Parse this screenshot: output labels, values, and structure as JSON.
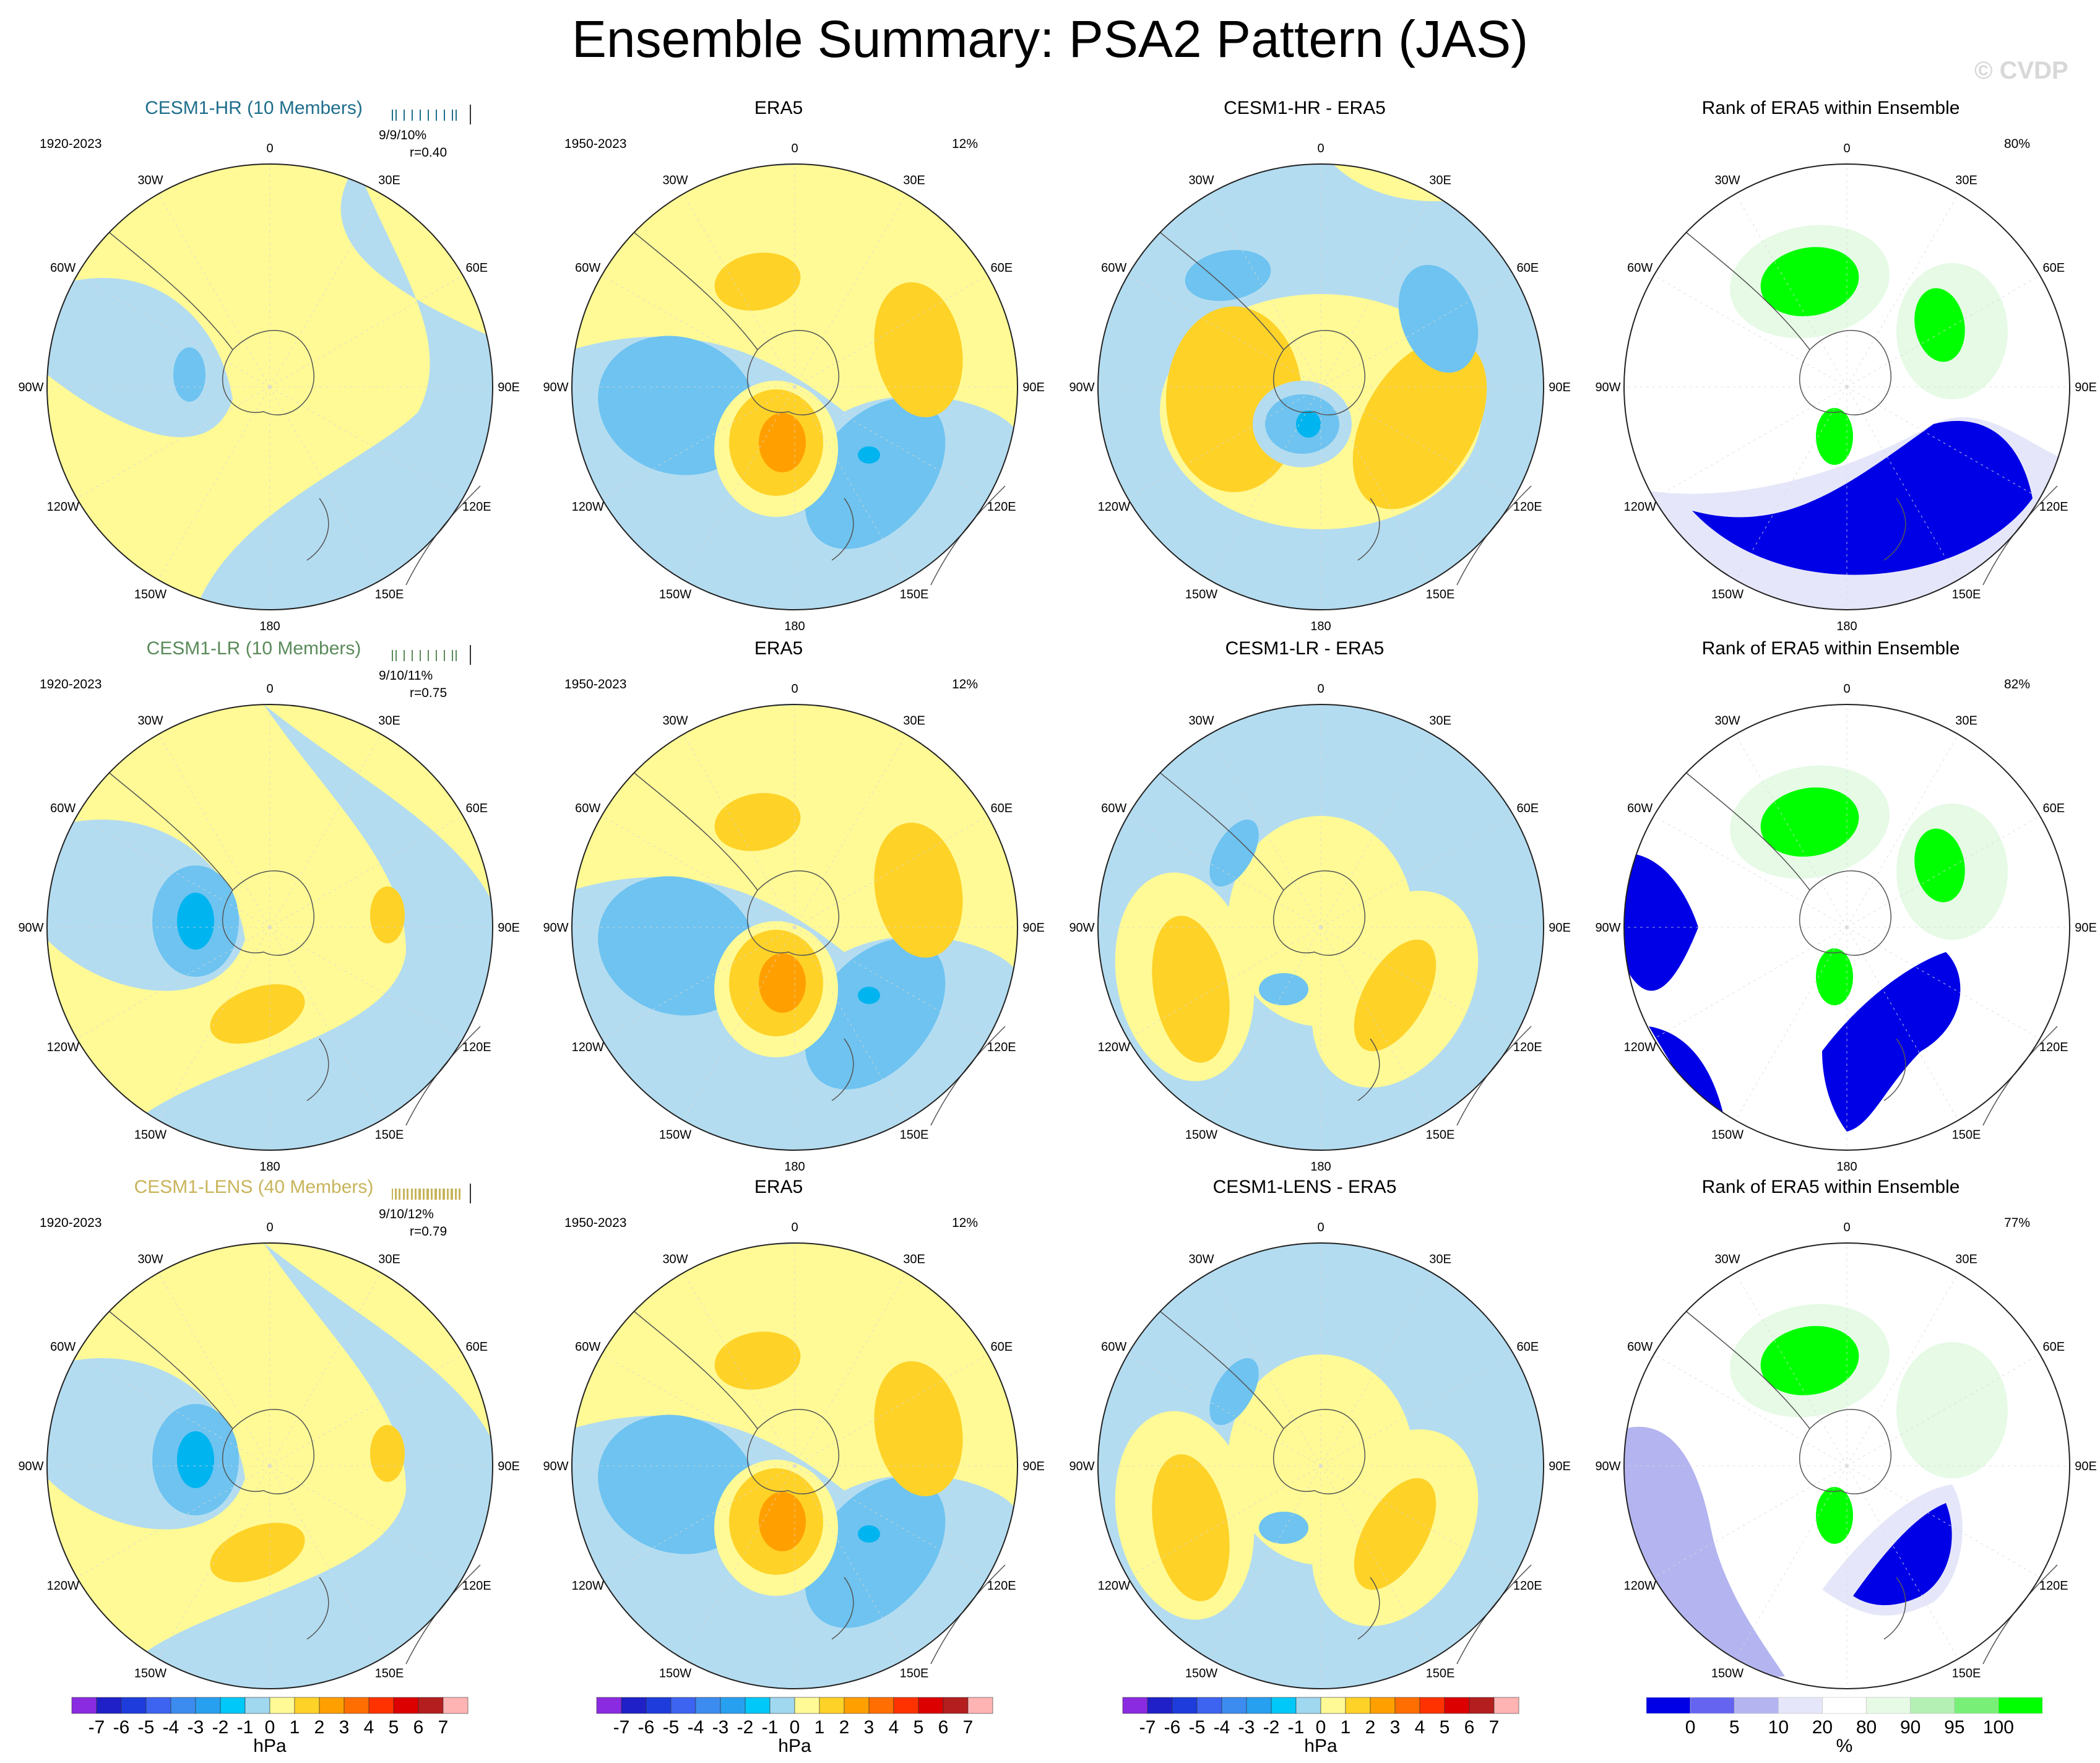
{
  "title": "Ensemble Summary: PSA2 Pattern (JAS)",
  "watermark": "© CVDP",
  "lon_labels": [
    "0",
    "30E",
    "60E",
    "90E",
    "120E",
    "150E",
    "180",
    "150W",
    "120W",
    "90W",
    "60W",
    "30W"
  ],
  "rows": [
    {
      "model_title": "CESM1-HR (10 Members)",
      "model_color": "#1f6e8c",
      "years": "1920-2023",
      "stats": "9/9/10%",
      "r": "r=0.40",
      "era5_title": "ERA5",
      "era5_years": "1950-2023",
      "era5_pct": "12%",
      "diff_title": "CESM1-HR - ERA5",
      "rank_title": "Rank of ERA5 within Ensemble",
      "rank_pct": "80%"
    },
    {
      "model_title": "CESM1-LR (10 Members)",
      "model_color": "#5a8a5a",
      "years": "1920-2023",
      "stats": "9/10/11%",
      "r": "r=0.75",
      "era5_title": "ERA5",
      "era5_years": "1950-2023",
      "era5_pct": "12%",
      "diff_title": "CESM1-LR - ERA5",
      "rank_title": "Rank of ERA5 within Ensemble",
      "rank_pct": "82%"
    },
    {
      "model_title": "CESM1-LENS (40 Members)",
      "model_color": "#c8b45a",
      "years": "1920-2023",
      "stats": "9/10/12%",
      "r": "r=0.79",
      "era5_title": "ERA5",
      "era5_years": "1950-2023",
      "era5_pct": "12%",
      "diff_title": "CESM1-LENS - ERA5",
      "rank_title": "Rank of ERA5 within Ensemble",
      "rank_pct": "77%"
    }
  ],
  "chart_data": [
    {
      "type": "polar-contour-map",
      "title": "Ensemble Summary: PSA2 Pattern (JAS)",
      "colorbar": {
        "unit": "hPa",
        "levels": [
          "-7",
          "-6",
          "-5",
          "-4",
          "-3",
          "-2",
          "-1",
          "0",
          "1",
          "2",
          "3",
          "4",
          "5",
          "6",
          "7"
        ],
        "colors": [
          "#8a2be2",
          "#2020c8",
          "#1e3cdc",
          "#3c64f0",
          "#3c8cf0",
          "#28a0f0",
          "#00c8f8",
          "#a0d8f0",
          "#fffa96",
          "#ffd228",
          "#ffa000",
          "#ff6e00",
          "#ff3200",
          "#dc0000",
          "#b41e1e",
          "#ffb4b4"
        ]
      }
    },
    {
      "type": "polar-rank-map",
      "title": "Rank of ERA5 within Ensemble",
      "colorbar": {
        "unit": "%",
        "labels": [
          "0",
          "5",
          "10",
          "20",
          "80",
          "90",
          "95",
          "100"
        ],
        "colors": [
          "#0000e6",
          "#6464f0",
          "#b4b4f0",
          "#e6e6fa",
          "#ffffff",
          "#e6fae6",
          "#b4f0b4",
          "#78f078",
          "#00ff00"
        ]
      }
    }
  ],
  "colorbars": {
    "anom_labels": [
      "-7",
      "-6",
      "-5",
      "-4",
      "-3",
      "-2",
      "-1",
      "0",
      "1",
      "2",
      "3",
      "4",
      "5",
      "6",
      "7"
    ],
    "anom_unit": "hPa",
    "rank_labels": [
      "0",
      "5",
      "10",
      "20",
      "80",
      "90",
      "95",
      "100"
    ],
    "rank_unit": "%"
  }
}
